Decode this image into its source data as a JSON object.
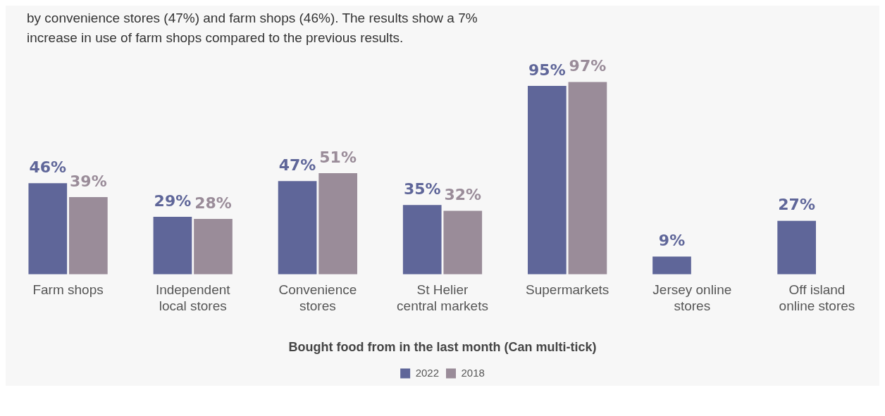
{
  "chart_data": {
    "type": "bar",
    "annotations": [
      "by convenience stores (47%) and farm shops (46%). The results show a 7% increase in use of farm shops compared to the previous results."
    ],
    "xlabel": "Bought food from in the last month (Can multi-tick)",
    "categories": [
      "Farm shops",
      "Independent local stores",
      "Convenience stores",
      "St Helier central markets",
      "Supermarkets",
      "Jersey online stores",
      "Off island online stores"
    ],
    "series": [
      {
        "name": "2022",
        "color": "#5f6699",
        "values": [
          46,
          29,
          47,
          35,
          95,
          9,
          27
        ],
        "value_labels": [
          "46%",
          "29%",
          "47%",
          "35%",
          "95%",
          "9%",
          "27%"
        ]
      },
      {
        "name": "2018",
        "color": "#9a8c99",
        "values": [
          39,
          28,
          51,
          32,
          97,
          null,
          null
        ],
        "value_labels": [
          "39%",
          "28%",
          "51%",
          "32%",
          "97%",
          null,
          null
        ]
      }
    ],
    "legend": "bottom",
    "grid": false
  }
}
